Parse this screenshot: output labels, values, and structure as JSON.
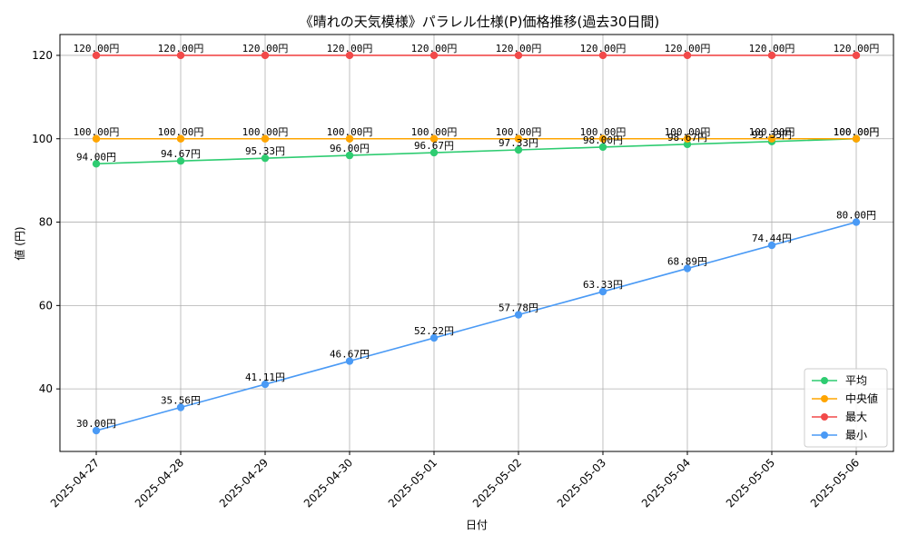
{
  "chart_data": {
    "type": "line",
    "title": "《晴れの天気模様》パラレル仕様(P)価格推移(過去30日間)",
    "xlabel": "日付",
    "ylabel": "値 (円)",
    "ylim": [
      25,
      125
    ],
    "yticks": [
      40,
      60,
      80,
      100,
      120
    ],
    "grid": true,
    "legend_position": "lower-right",
    "categories": [
      "2025-04-27",
      "2025-04-28",
      "2025-04-29",
      "2025-04-30",
      "2025-05-01",
      "2025-05-02",
      "2025-05-03",
      "2025-05-04",
      "2025-05-05",
      "2025-05-06"
    ],
    "series": [
      {
        "name": "平均",
        "color": "#2ecc71",
        "values": [
          94.0,
          94.67,
          95.33,
          96.0,
          96.67,
          97.33,
          98.0,
          98.67,
          99.33,
          100.0
        ],
        "labels": [
          "94.00円",
          "94.67円",
          "95.33円",
          "96.00円",
          "96.67円",
          "97.33円",
          "98.00円",
          "98.67円",
          "99.33円",
          "100.00円"
        ]
      },
      {
        "name": "中央値",
        "color": "#ffa500",
        "values": [
          100,
          100,
          100,
          100,
          100,
          100,
          100,
          100,
          100,
          100
        ],
        "labels": [
          "100.00円",
          "100.00円",
          "100.00円",
          "100.00円",
          "100.00円",
          "100.00円",
          "100.00円",
          "100.00円",
          "100.00円",
          "100.00円"
        ]
      },
      {
        "name": "最大",
        "color": "#f24a4a",
        "values": [
          120,
          120,
          120,
          120,
          120,
          120,
          120,
          120,
          120,
          120
        ],
        "labels": [
          "120.00円",
          "120.00円",
          "120.00円",
          "120.00円",
          "120.00円",
          "120.00円",
          "120.00円",
          "120.00円",
          "120.00円",
          "120.00円"
        ]
      },
      {
        "name": "最小",
        "color": "#4a9af5",
        "values": [
          30.0,
          35.56,
          41.11,
          46.67,
          52.22,
          57.78,
          63.33,
          68.89,
          74.44,
          80.0
        ],
        "labels": [
          "30.00円",
          "35.56円",
          "41.11円",
          "46.67円",
          "52.22円",
          "57.78円",
          "63.33円",
          "68.89円",
          "74.44円",
          "80.00円"
        ]
      }
    ]
  }
}
